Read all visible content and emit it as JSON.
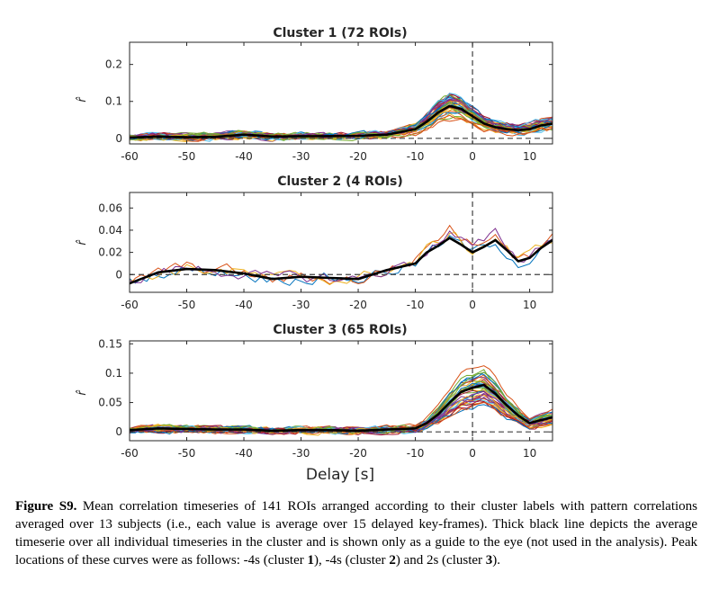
{
  "chart_data": [
    {
      "type": "line",
      "title": "Cluster 1 (72 ROIs)",
      "xlabel": "",
      "ylabel": "r̂",
      "xlim": [
        -60,
        14
      ],
      "ylim": [
        -0.015,
        0.26
      ],
      "xticks": [
        -60,
        -50,
        -40,
        -30,
        -20,
        -10,
        0,
        10
      ],
      "xtick_labels": [
        "-60",
        "-50",
        "-40",
        "-30",
        "-20",
        "-10",
        "0",
        "10"
      ],
      "yticks": [
        0,
        0.1,
        0.2
      ],
      "ytick_labels": [
        "0",
        "0.1",
        "0.2"
      ],
      "n_series": 72,
      "peak_delay": -4,
      "mean_series": {
        "name": "mean",
        "x": [
          -60,
          -55,
          -50,
          -45,
          -40,
          -35,
          -30,
          -25,
          -20,
          -15,
          -10,
          -8,
          -6,
          -4,
          -2,
          0,
          2,
          4,
          6,
          8,
          10,
          12,
          14
        ],
        "y": [
          0.002,
          0.005,
          0.003,
          0.004,
          0.01,
          0.005,
          0.006,
          0.006,
          0.007,
          0.01,
          0.025,
          0.045,
          0.07,
          0.088,
          0.08,
          0.06,
          0.04,
          0.03,
          0.025,
          0.022,
          0.025,
          0.035,
          0.04
        ]
      }
    },
    {
      "type": "line",
      "title": "Cluster 2 (4 ROIs)",
      "xlabel": "",
      "ylabel": "r̂",
      "xlim": [
        -60,
        14
      ],
      "ylim": [
        -0.016,
        0.074
      ],
      "xticks": [
        -60,
        -50,
        -40,
        -30,
        -20,
        -10,
        0,
        10
      ],
      "xtick_labels": [
        "-60",
        "-50",
        "-40",
        "-30",
        "-20",
        "-10",
        "0",
        "10"
      ],
      "yticks": [
        0,
        0.02,
        0.04,
        0.06
      ],
      "ytick_labels": [
        "0",
        "0.02",
        "0.04",
        "0.06"
      ],
      "n_series": 4,
      "peak_delay": -4,
      "mean_series": {
        "name": "mean",
        "x": [
          -60,
          -55,
          -50,
          -45,
          -40,
          -35,
          -30,
          -25,
          -20,
          -15,
          -10,
          -8,
          -6,
          -4,
          -2,
          0,
          2,
          4,
          6,
          8,
          10,
          12,
          14
        ],
        "y": [
          -0.008,
          0.002,
          0.005,
          0.004,
          0.001,
          -0.004,
          -0.002,
          -0.003,
          -0.004,
          0.004,
          0.01,
          0.02,
          0.026,
          0.033,
          0.027,
          0.02,
          0.025,
          0.031,
          0.022,
          0.012,
          0.015,
          0.024,
          0.031
        ]
      }
    },
    {
      "type": "line",
      "title": "Cluster 3 (65 ROIs)",
      "xlabel": "Delay [s]",
      "ylabel": "r̂",
      "xlim": [
        -60,
        14
      ],
      "ylim": [
        -0.015,
        0.155
      ],
      "xticks": [
        -60,
        -50,
        -40,
        -30,
        -20,
        -10,
        0,
        10
      ],
      "xtick_labels": [
        "-60",
        "-50",
        "-40",
        "-30",
        "-20",
        "-10",
        "0",
        "10"
      ],
      "yticks": [
        0,
        0.05,
        0.1,
        0.15
      ],
      "ytick_labels": [
        "0",
        "0.05",
        "0.1",
        "0.15"
      ],
      "n_series": 65,
      "peak_delay": 2,
      "mean_series": {
        "name": "mean",
        "x": [
          -60,
          -55,
          -50,
          -45,
          -40,
          -35,
          -30,
          -25,
          -20,
          -15,
          -10,
          -8,
          -6,
          -4,
          -2,
          0,
          2,
          4,
          6,
          8,
          10,
          12,
          14
        ],
        "y": [
          0.003,
          0.006,
          0.005,
          0.004,
          0.004,
          0.002,
          0.003,
          0.003,
          0.002,
          0.004,
          0.006,
          0.015,
          0.03,
          0.05,
          0.068,
          0.075,
          0.08,
          0.065,
          0.045,
          0.028,
          0.015,
          0.02,
          0.025
        ]
      }
    }
  ],
  "caption": {
    "label": "Figure S9.",
    "t1": " Mean correlation timeseries of 141 ROIs arranged according to their cluster labels with pattern correlations averaged over 13 subjects (i.e., each value is average over 15 delayed key-frames). Thick black line depicts the average timeserie over all individual timeseries in the cluster and is shown only as a guide to the eye (not used in the analysis). Peak locations of these curves were as follows: -4s (cluster ",
    "c1": "1",
    "t2": "), -4s (cluster ",
    "c2": "2",
    "t3": ") and 2s (cluster ",
    "c3": "3",
    "t4": ")."
  },
  "colors": {
    "palette": [
      "#0072bd",
      "#d95319",
      "#edb120",
      "#7e2f8e",
      "#77ac30",
      "#4dbeee",
      "#a2142f"
    ],
    "mean": "#000000",
    "axis": "#262626",
    "zero_line": "#404040"
  }
}
